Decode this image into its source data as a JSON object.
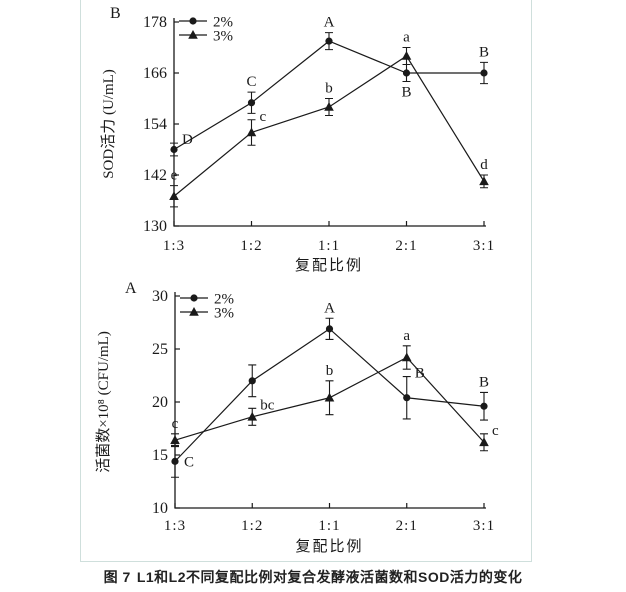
{
  "figure_caption": {
    "prefix": "图 7",
    "text": "L1和L2不同复配比例对复合发酵液活菌数和SOD活力的变化"
  },
  "colors": {
    "line": "#1a1a1a",
    "panel_border": "#cfdfdc"
  },
  "chart_data": [
    {
      "type": "line",
      "panel_label": "B",
      "xlabel": "复配比例",
      "ylabel": "SOD活力 (U/mL)",
      "categories": [
        "1:3",
        "1:2",
        "1:1",
        "2:1",
        "3:1"
      ],
      "ylim": [
        130,
        178
      ],
      "yticks": [
        130,
        142,
        154,
        166,
        178
      ],
      "grid": false,
      "legend_position": "top-left",
      "series": [
        {
          "name": "2%",
          "marker": "circle",
          "values": [
            148,
            159,
            173.5,
            166,
            166
          ],
          "errors": [
            1.5,
            2.5,
            2,
            2,
            2.5
          ],
          "point_labels": [
            "D",
            "C",
            "A",
            "B",
            "B"
          ],
          "label_positions": [
            "above-right",
            "above",
            "above",
            "below",
            "above"
          ]
        },
        {
          "name": "3%",
          "marker": "triangle",
          "values": [
            137,
            152,
            158,
            170,
            140.5
          ],
          "errors": [
            2.5,
            3,
            2,
            2,
            1.5
          ],
          "point_labels": [
            "e",
            "c",
            "b",
            "a",
            "d"
          ],
          "label_positions": [
            "above",
            "above-right",
            "above",
            "above",
            "above"
          ]
        }
      ]
    },
    {
      "type": "line",
      "panel_label": "A",
      "xlabel": "复配比例",
      "ylabel": "活菌数×10⁸ (CFU/mL)",
      "categories": [
        "1:3",
        "1:2",
        "1:1",
        "2:1",
        "3:1"
      ],
      "ylim": [
        10,
        30
      ],
      "yticks": [
        10,
        15,
        20,
        25,
        30
      ],
      "grid": false,
      "legend_position": "top-left",
      "series": [
        {
          "name": "2%",
          "marker": "circle",
          "values": [
            14.4,
            22,
            26.9,
            20.4,
            19.6
          ],
          "errors": [
            1.5,
            1.5,
            1,
            2,
            1.3
          ],
          "point_labels": [
            "C",
            "",
            "A",
            "B",
            "B"
          ],
          "label_positions": [
            "right",
            "",
            "above",
            "above-right",
            "above"
          ]
        },
        {
          "name": "3%",
          "marker": "triangle",
          "values": [
            16.4,
            18.6,
            20.4,
            24.2,
            16.2
          ],
          "errors": [
            0.6,
            0.8,
            1.6,
            1.1,
            0.8
          ],
          "point_labels": [
            "c",
            "bc",
            "b",
            "a",
            "c"
          ],
          "label_positions": [
            "above",
            "above-right",
            "above",
            "above",
            "above-right"
          ]
        }
      ]
    }
  ]
}
